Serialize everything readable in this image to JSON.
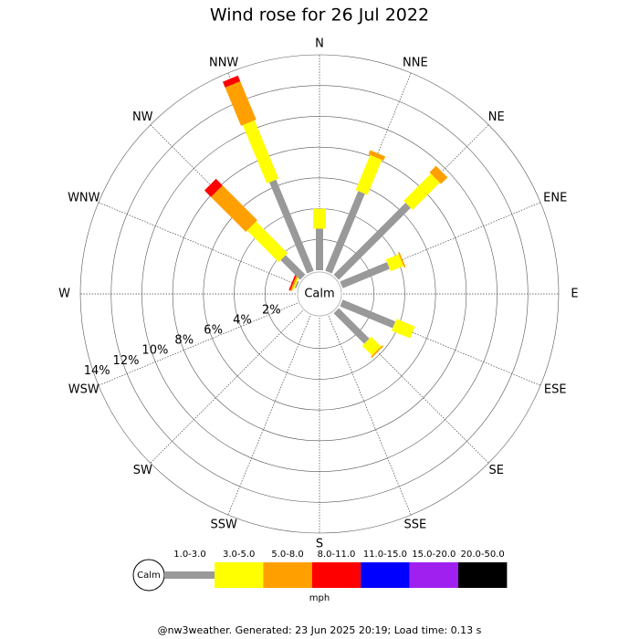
{
  "chart_data": {
    "type": "wind_rose",
    "title": "Wind rose for 26 Jul 2022",
    "center_label": "Calm",
    "categories": [
      "N",
      "NNE",
      "NE",
      "ENE",
      "E",
      "ESE",
      "SE",
      "SSE",
      "S",
      "SSW",
      "SW",
      "WSW",
      "W",
      "WNW",
      "NW",
      "NNW"
    ],
    "ylim": [
      0,
      14
    ],
    "yticks": [
      {
        "value": 2,
        "label": "2%"
      },
      {
        "value": 4,
        "label": "4%"
      },
      {
        "value": 6,
        "label": "6%"
      },
      {
        "value": 8,
        "label": "8%"
      },
      {
        "value": 10,
        "label": "10%"
      },
      {
        "value": 12,
        "label": "12%"
      },
      {
        "value": 14,
        "label": "14%"
      }
    ],
    "legend_title": "mph",
    "series": [
      {
        "name": "1.0-3.0",
        "color": "#999999",
        "values": [
          2.7,
          5.6,
          6.6,
          3.3,
          0,
          3.7,
          2.8,
          0,
          0,
          0,
          0,
          0,
          0,
          0.1,
          1.8,
          6.4
        ]
      },
      {
        "name": "3.0-5.0",
        "color": "#ffff00",
        "values": [
          1.3,
          2.45,
          2.5,
          0.9,
          0,
          1.3,
          0.9,
          0,
          0,
          0,
          0,
          0,
          0,
          0.1,
          2.9,
          4.1
        ]
      },
      {
        "name": "5.0-8.0",
        "color": "#ffa000",
        "values": [
          0,
          0.3,
          0.6,
          0.1,
          0,
          0,
          0.1,
          0,
          0,
          0,
          0,
          0,
          0,
          0.1,
          3.2,
          2.7
        ]
      },
      {
        "name": "8.0-11.0",
        "color": "#ff0000",
        "values": [
          0,
          0,
          0,
          0,
          0,
          0,
          0,
          0,
          0,
          0,
          0,
          0,
          0,
          0.1,
          0.6,
          0.4
        ]
      },
      {
        "name": "11.0-15.0",
        "color": "#0000ff",
        "values": [
          0,
          0,
          0,
          0,
          0,
          0,
          0,
          0,
          0,
          0,
          0,
          0,
          0,
          0,
          0,
          0
        ]
      },
      {
        "name": "15.0-20.0",
        "color": "#a020f0",
        "values": [
          0,
          0,
          0,
          0,
          0,
          0,
          0,
          0,
          0,
          0,
          0,
          0,
          0,
          0,
          0,
          0
        ]
      },
      {
        "name": "20.0-50.0",
        "color": "#000000",
        "values": [
          0,
          0,
          0,
          0,
          0,
          0,
          0,
          0,
          0,
          0,
          0,
          0,
          0,
          0,
          0,
          0
        ]
      }
    ],
    "footer": "@nw3weather. Generated: 23 Jun 2025 20:19; Load time: 0.13 s"
  }
}
